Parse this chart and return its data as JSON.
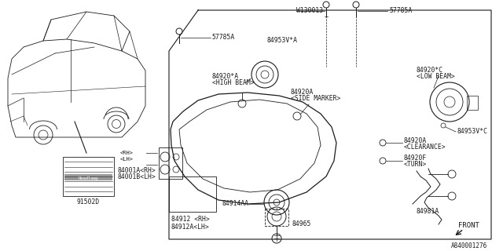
{
  "bg_color": "#ffffff",
  "line_color": "#1a1a1a",
  "text_color": "#1a1a1a",
  "diagram_id": "A840001276",
  "font": "DejaVu Sans",
  "fs": 5.8,
  "labels": {
    "w130013": "W130013",
    "57785a_top": "57785A",
    "57785a_left": "57785A",
    "84953va": "84953V*A",
    "84920a_hb_1": "84920*A",
    "84920a_hb_2": "<HIGH BEAM>",
    "84920c_lb_1": "84920*C",
    "84920c_lb_2": "<LOW BEAM>",
    "84920a_sm_1": "84920A",
    "84920a_sm_2": "<SIDE MARKER>",
    "84953vc": "84953V*C",
    "84920a_cl_1": "84920A",
    "84920a_cl_2": "<CLEARANCE>",
    "84920f_1": "84920F",
    "84920f_2": "<TURN>",
    "84981a": "84981A",
    "84001a": "84001A<RH>",
    "84001b": "84001B<LH>",
    "84912_rh": "84912 <RH>",
    "84912a_lh": "84912A<LH>",
    "84914aa": "84914AA",
    "84965": "84965",
    "91502d": "91502D",
    "front": "FRONT"
  }
}
